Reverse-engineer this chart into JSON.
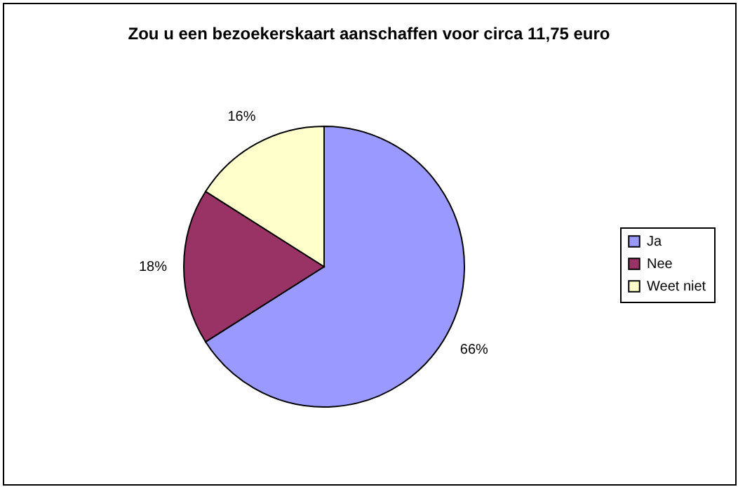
{
  "chart_data": {
    "type": "pie",
    "title": "Zou u een bezoekerskaart aanschaffen voor circa 11,75 euro",
    "categories": [
      "Ja",
      "Nee",
      "Weet niet"
    ],
    "values": [
      66,
      18,
      16
    ],
    "colors": [
      "#9999ff",
      "#993366",
      "#ffffcc"
    ],
    "value_labels": [
      "66%",
      "18%",
      "16%"
    ],
    "legend": "right"
  }
}
